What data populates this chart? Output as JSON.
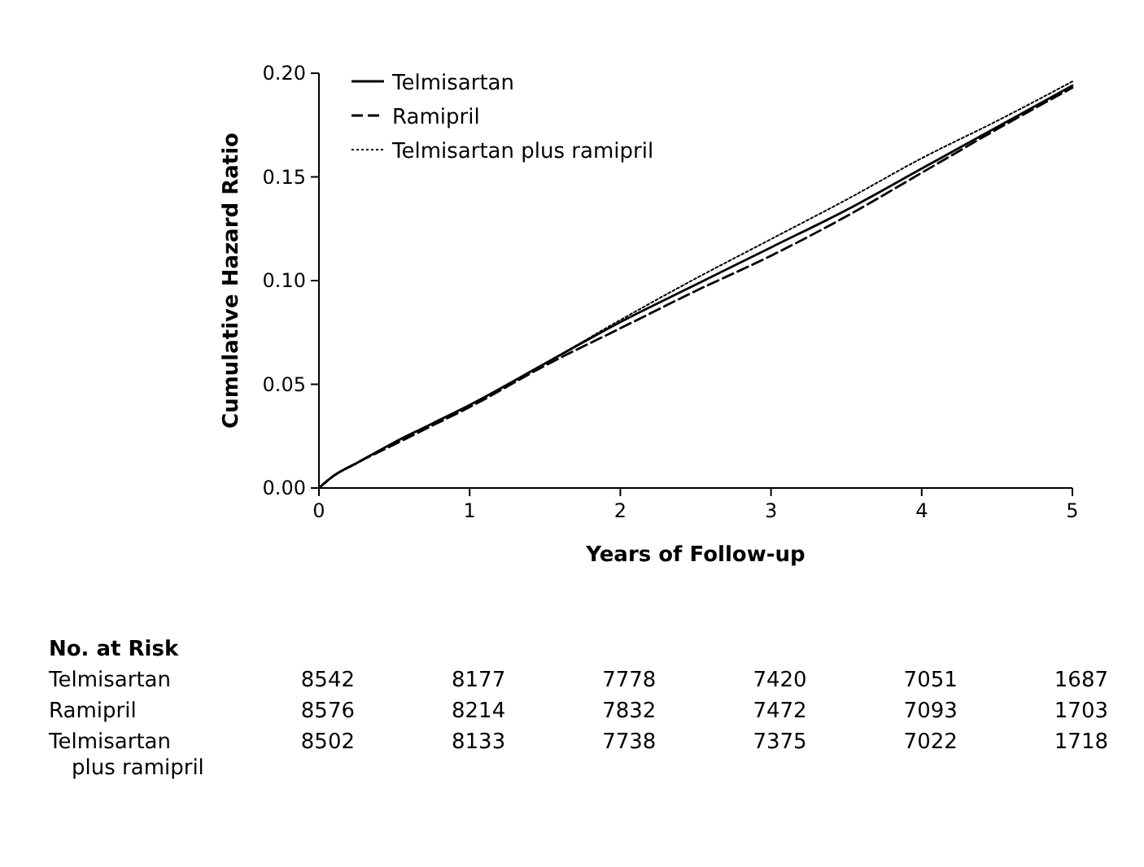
{
  "chart_data": {
    "type": "line",
    "xlabel": "Years of Follow-up",
    "ylabel": "Cumulative Hazard Ratio",
    "x": [
      0,
      0.1,
      0.25,
      0.5,
      0.75,
      1,
      1.5,
      2,
      2.5,
      3,
      3.5,
      4,
      4.5,
      5
    ],
    "xlim": [
      0,
      5
    ],
    "xticks": [
      0,
      1,
      2,
      3,
      4,
      5
    ],
    "ylim": [
      0,
      0.2
    ],
    "yticks": [
      {
        "value": 0,
        "label": "0.00"
      },
      {
        "value": 0.05,
        "label": "0.05"
      },
      {
        "value": 0.1,
        "label": "0.10"
      },
      {
        "value": 0.15,
        "label": "0.15"
      },
      {
        "value": 0.2,
        "label": "0.20"
      }
    ],
    "grid": false,
    "legend": "top left",
    "series": [
      {
        "name": "Telmisartan",
        "color": "#000000",
        "line_style": "solid",
        "values": [
          0,
          0.006,
          0.012,
          0.022,
          0.031,
          0.04,
          0.06,
          0.08,
          0.098,
          0.116,
          0.134,
          0.154,
          0.174,
          0.194
        ]
      },
      {
        "name": "Ramipril",
        "color": "#000000",
        "line_style": "dashed",
        "values": [
          0,
          0.006,
          0.012,
          0.021,
          0.03,
          0.039,
          0.059,
          0.077,
          0.095,
          0.112,
          0.131,
          0.152,
          0.173,
          0.193
        ]
      },
      {
        "name": "Telmisartan plus ramipril",
        "color": "#000000",
        "line_style": "dotted",
        "values": [
          0,
          0.006,
          0.012,
          0.022,
          0.031,
          0.04,
          0.06,
          0.081,
          0.101,
          0.12,
          0.139,
          0.159,
          0.177,
          0.196
        ]
      }
    ],
    "annotations": [
      "No. at Risk",
      "Telmisartan",
      "8542",
      "8177",
      "7778",
      "7420",
      "7051",
      "1687",
      "Ramipril",
      "8576",
      "8214",
      "7832",
      "7472",
      "7093",
      "1703",
      "Telmisartan plus ramipril",
      "8502",
      "8133",
      "7738",
      "7375",
      "7022",
      "1718"
    ]
  }
}
